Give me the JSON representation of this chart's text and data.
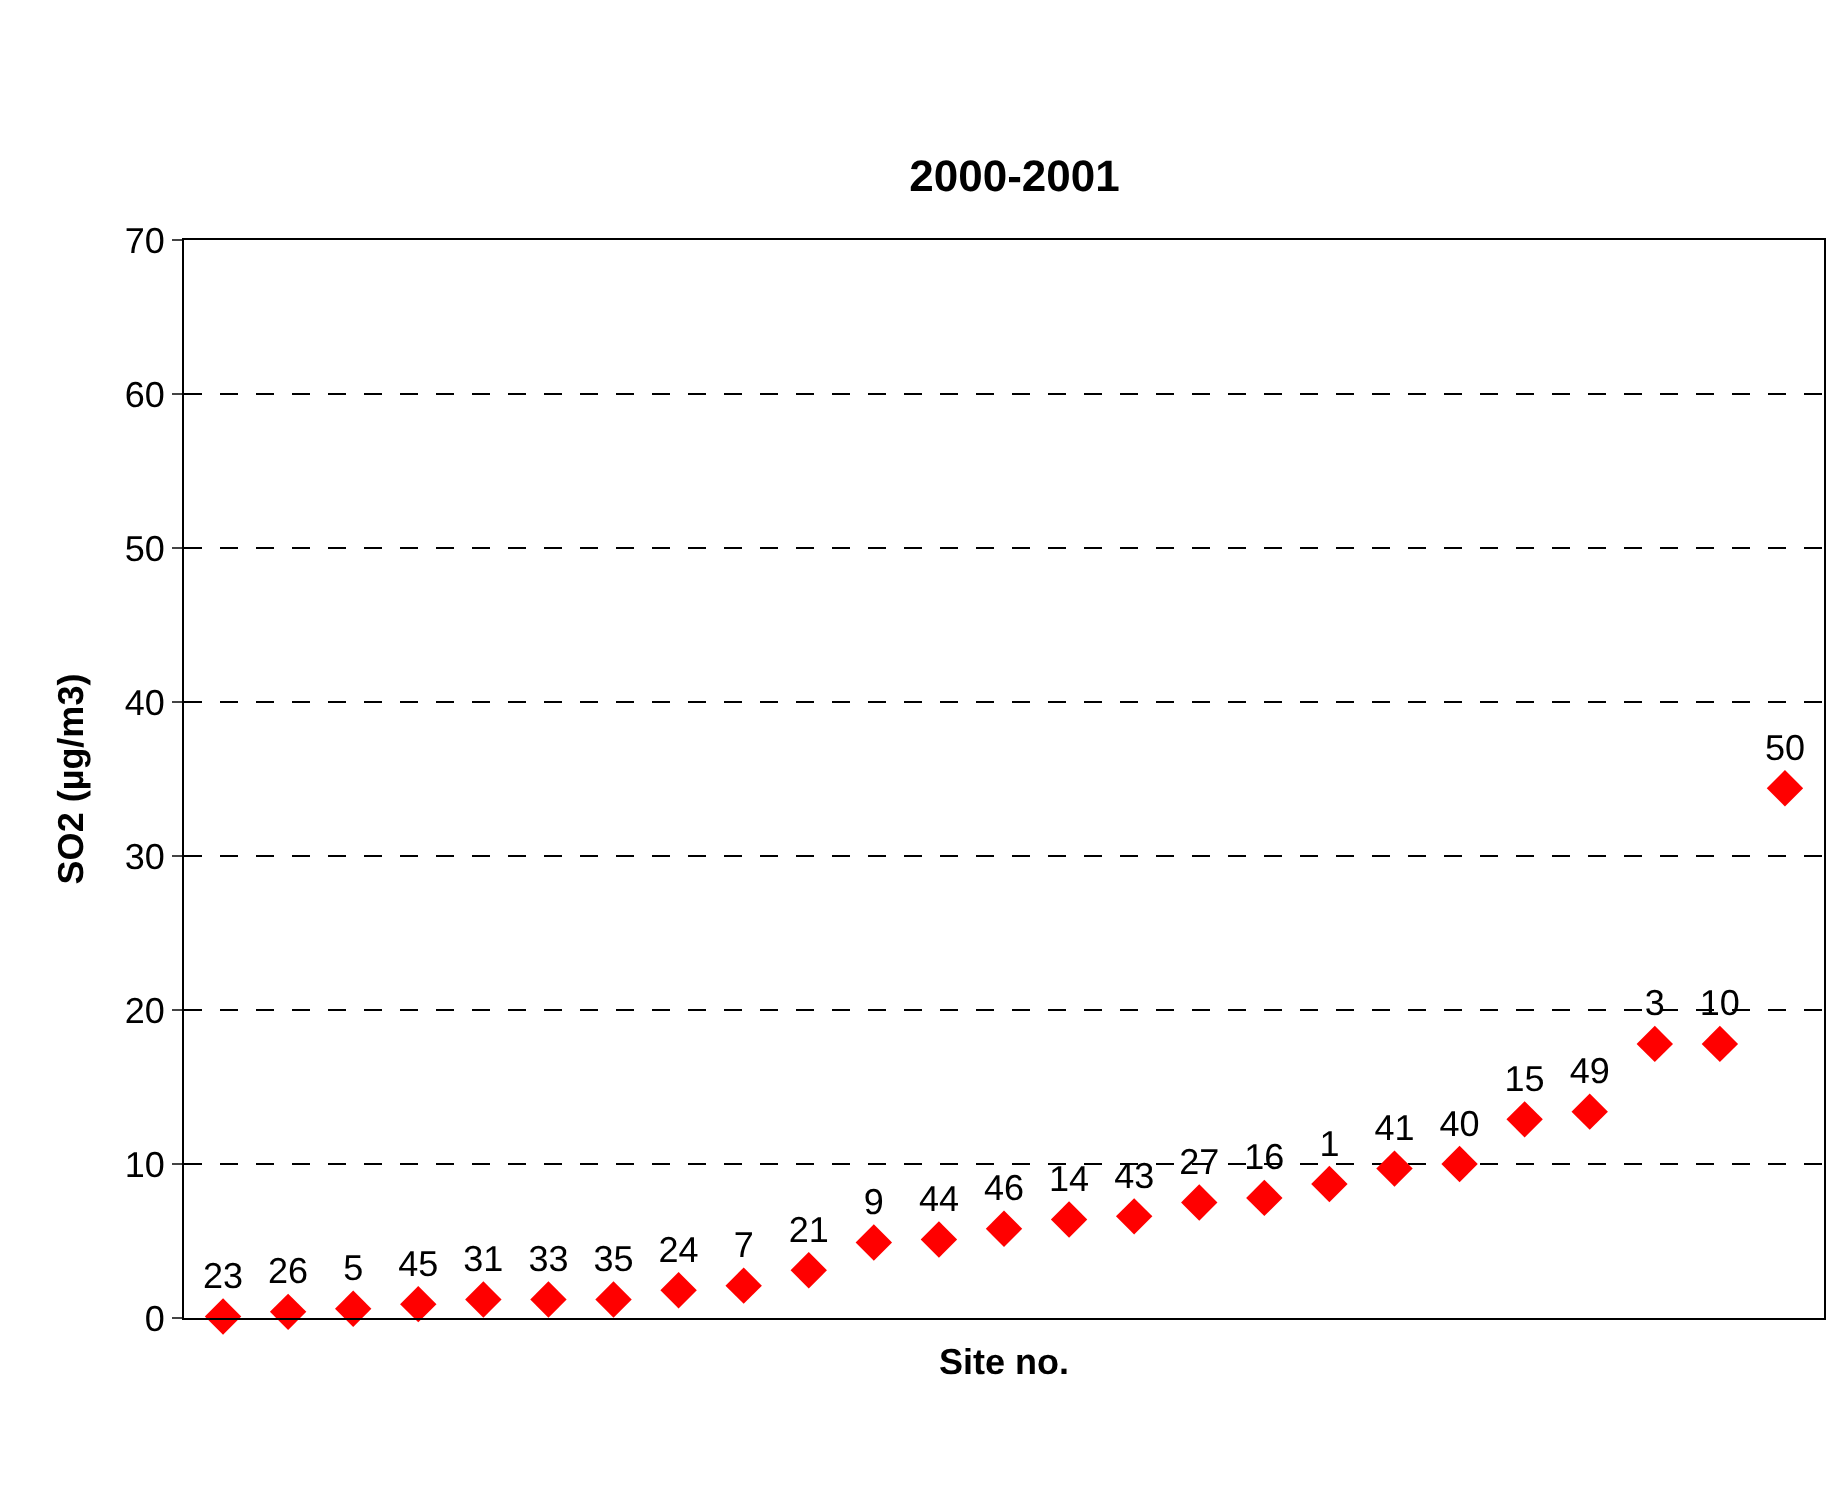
{
  "chart_data": {
    "type": "scatter",
    "title": "2000-2001",
    "xlabel": "Site no.",
    "ylabel": "SO2 (µg/m3)",
    "categories": [
      "23",
      "26",
      "5",
      "45",
      "31",
      "33",
      "35",
      "24",
      "7",
      "21",
      "9",
      "44",
      "46",
      "14",
      "43",
      "27",
      "16",
      "1",
      "41",
      "40",
      "15",
      "49",
      "3",
      "10",
      "50"
    ],
    "series": [
      {
        "color": "#ff0000",
        "values": [
          0.1,
          0.4,
          0.6,
          0.9,
          1.2,
          1.2,
          1.2,
          1.8,
          2.1,
          3.1,
          4.9,
          5.1,
          5.8,
          6.4,
          6.6,
          7.5,
          7.8,
          8.7,
          9.7,
          10.0,
          12.9,
          13.4,
          17.8,
          17.8,
          34.4
        ]
      }
    ],
    "ylim": [
      0,
      70
    ],
    "yticks": [
      0,
      10,
      20,
      30,
      40,
      50,
      60,
      70
    ],
    "grid": "y",
    "marker": "diamond",
    "legend": false
  }
}
